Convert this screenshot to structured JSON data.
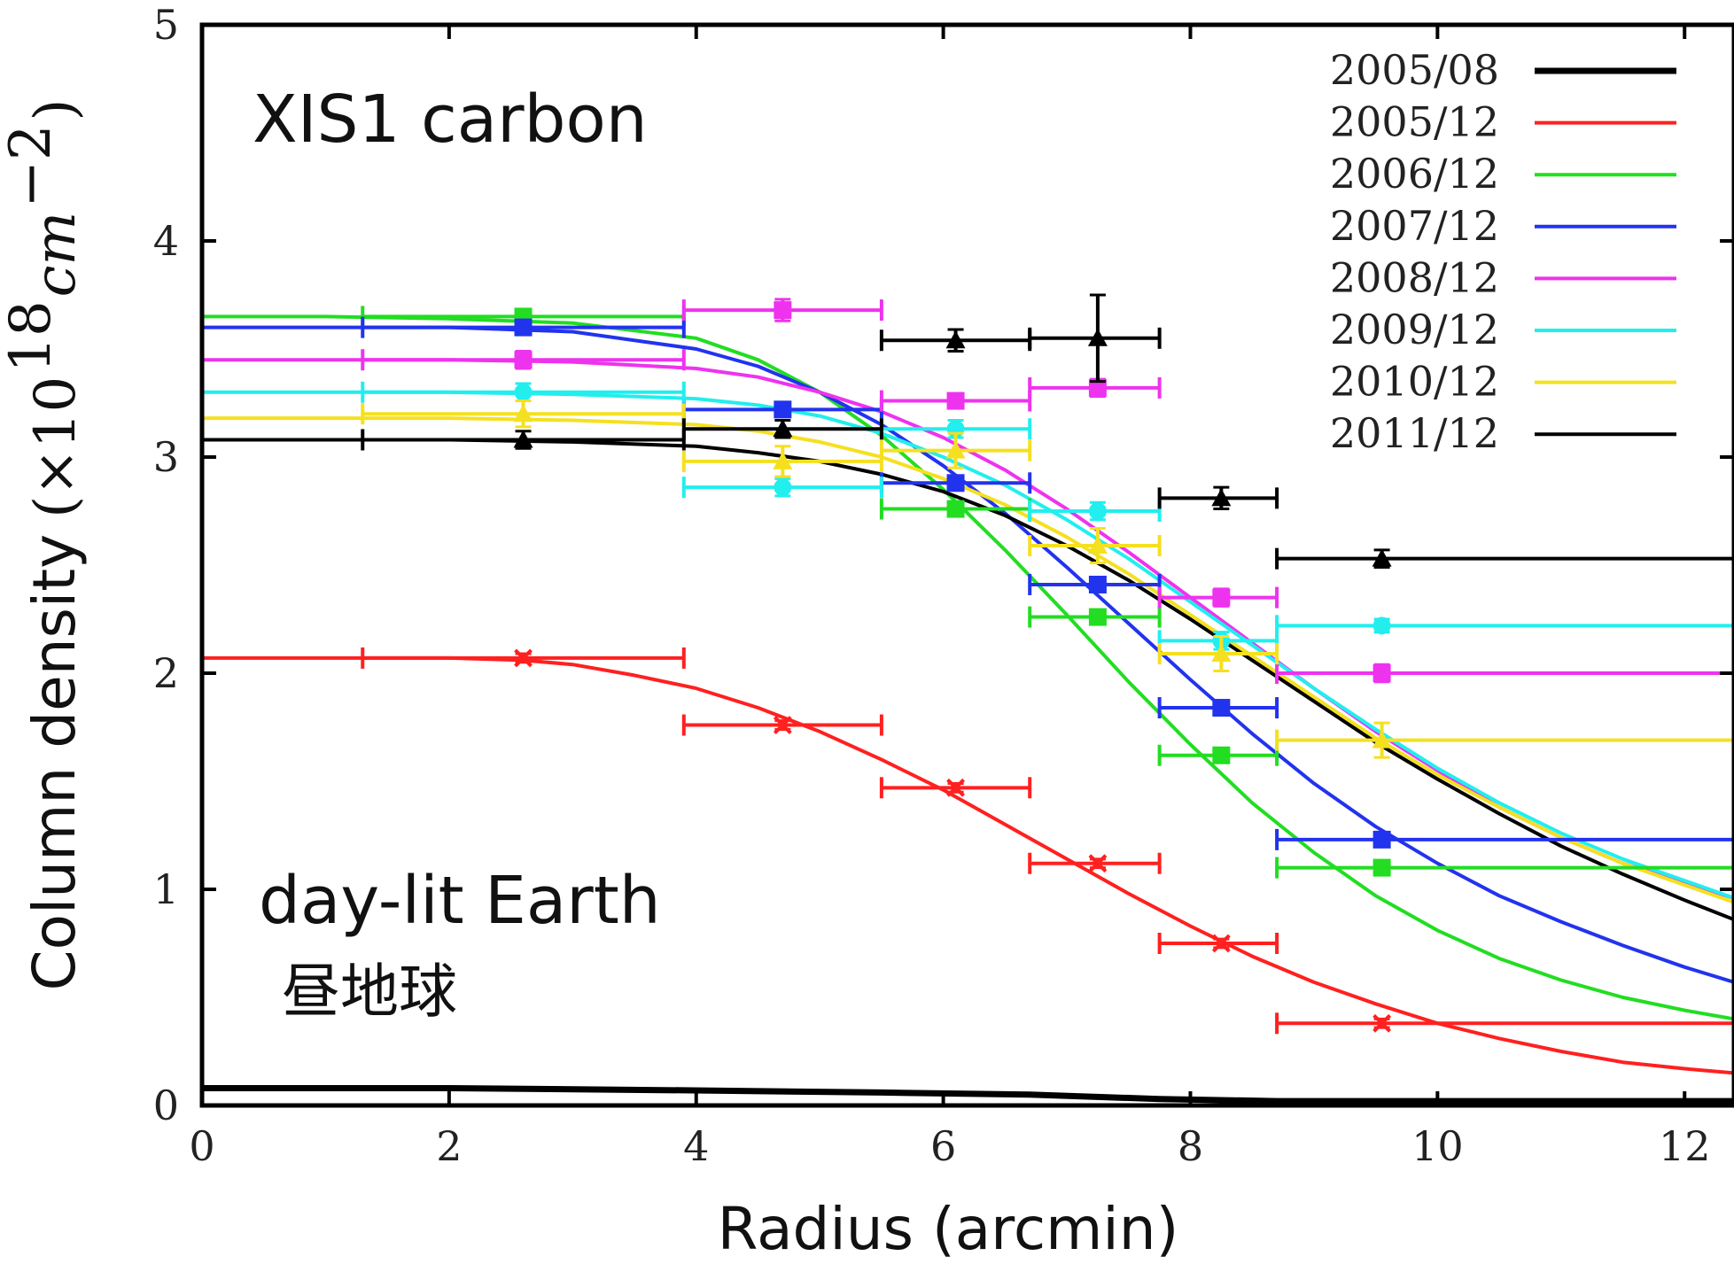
{
  "chart_data": {
    "type": "line",
    "xlabel": "Radius (arcmin)",
    "ylabel": "Column density",
    "ylabel_unit": {
      "open": "(×10",
      "exp": "18",
      "unit": "cm",
      "unit_exp": "−2",
      "close": ")"
    },
    "xlim": [
      0,
      12.4
    ],
    "ylim": [
      0,
      5
    ],
    "xticks": [
      0,
      2,
      4,
      6,
      8,
      10,
      12
    ],
    "yticks": [
      0,
      1,
      2,
      3,
      4,
      5
    ],
    "grid": false,
    "legend_position": "top-right",
    "annotations": [
      "XIS1 carbon",
      "day-lit Earth",
      "昼地球"
    ],
    "bins": [
      [
        1.3,
        3.9
      ],
      [
        3.9,
        5.5
      ],
      [
        5.5,
        6.7
      ],
      [
        6.7,
        7.75
      ],
      [
        7.75,
        8.7
      ],
      [
        8.7,
        12.4
      ]
    ],
    "bin_centers": [
      2.6,
      4.7,
      6.1,
      7.25,
      8.25,
      9.55
    ],
    "series": [
      {
        "name": "2005/08",
        "color": "#000000",
        "width": 7,
        "marker": "none",
        "x": [
          0,
          2,
          3.9,
          5.5,
          6.7,
          7.75,
          8.7,
          10,
          11,
          12.4
        ],
        "y": [
          0.08,
          0.08,
          0.07,
          0.06,
          0.05,
          0.03,
          0.02,
          0.02,
          0.02,
          0.02
        ],
        "points": []
      },
      {
        "name": "2005/12",
        "color": "#ff2020",
        "width": 4,
        "marker": "x",
        "x": [
          0,
          1,
          2,
          2.6,
          3,
          3.5,
          4,
          4.5,
          5,
          5.5,
          6,
          6.5,
          7,
          7.5,
          8,
          8.5,
          9,
          9.5,
          10,
          10.5,
          11,
          11.5,
          12,
          12.4
        ],
        "y": [
          2.07,
          2.07,
          2.07,
          2.06,
          2.04,
          1.99,
          1.93,
          1.84,
          1.73,
          1.6,
          1.46,
          1.3,
          1.14,
          0.98,
          0.83,
          0.69,
          0.57,
          0.47,
          0.38,
          0.31,
          0.25,
          0.2,
          0.17,
          0.15
        ],
        "points": [
          {
            "x": 2.6,
            "y": 2.07,
            "xerr": [
              1.3,
              3.9
            ],
            "yerr": 0.02
          },
          {
            "x": 4.7,
            "y": 1.76,
            "xerr": [
              3.9,
              5.5
            ],
            "yerr": 0.02
          },
          {
            "x": 6.1,
            "y": 1.47,
            "xerr": [
              5.5,
              6.7
            ],
            "yerr": 0.02
          },
          {
            "x": 7.25,
            "y": 1.12,
            "xerr": [
              6.7,
              7.75
            ],
            "yerr": 0.02
          },
          {
            "x": 8.25,
            "y": 0.75,
            "xerr": [
              7.75,
              8.7
            ],
            "yerr": 0.02
          },
          {
            "x": 9.55,
            "y": 0.38,
            "xerr": [
              8.7,
              12.4
            ],
            "yerr": 0.02
          }
        ]
      },
      {
        "name": "2006/12",
        "color": "#22dd22",
        "width": 4,
        "marker": "square",
        "x": [
          0,
          1,
          2,
          3,
          4,
          4.5,
          5,
          5.5,
          6,
          6.5,
          7,
          7.5,
          8,
          8.5,
          9,
          9.5,
          10,
          10.5,
          11,
          11.5,
          12,
          12.4
        ],
        "y": [
          3.65,
          3.65,
          3.64,
          3.62,
          3.55,
          3.45,
          3.3,
          3.1,
          2.85,
          2.57,
          2.27,
          1.96,
          1.67,
          1.4,
          1.17,
          0.97,
          0.81,
          0.68,
          0.58,
          0.5,
          0.44,
          0.4
        ],
        "points": [
          {
            "x": 2.6,
            "y": 3.65,
            "xerr": [
              1.3,
              3.9
            ],
            "yerr": 0.03
          },
          {
            "x": 6.1,
            "y": 2.76,
            "xerr": [
              5.5,
              6.7
            ],
            "yerr": 0.03
          },
          {
            "x": 7.25,
            "y": 2.26,
            "xerr": [
              6.7,
              7.75
            ],
            "yerr": 0.03
          },
          {
            "x": 8.25,
            "y": 1.62,
            "xerr": [
              7.75,
              8.7
            ],
            "yerr": 0.03
          },
          {
            "x": 9.55,
            "y": 1.1,
            "xerr": [
              8.7,
              12.4
            ],
            "yerr": 0.03
          }
        ]
      },
      {
        "name": "2007/12",
        "color": "#2233ee",
        "width": 4,
        "marker": "square",
        "x": [
          0,
          1,
          2,
          3,
          4,
          4.5,
          5,
          5.5,
          6,
          6.5,
          7,
          7.5,
          8,
          8.5,
          9,
          9.5,
          10,
          10.5,
          11,
          11.5,
          12,
          12.4
        ],
        "y": [
          3.6,
          3.6,
          3.6,
          3.58,
          3.5,
          3.42,
          3.3,
          3.15,
          2.96,
          2.74,
          2.49,
          2.23,
          1.97,
          1.72,
          1.49,
          1.29,
          1.12,
          0.97,
          0.85,
          0.74,
          0.64,
          0.57
        ],
        "points": [
          {
            "x": 2.6,
            "y": 3.6,
            "xerr": [
              1.3,
              3.9
            ],
            "yerr": 0.03
          },
          {
            "x": 4.7,
            "y": 3.22,
            "xerr": [
              3.9,
              5.5
            ],
            "yerr": 0.03
          },
          {
            "x": 6.1,
            "y": 2.88,
            "xerr": [
              5.5,
              6.7
            ],
            "yerr": 0.03
          },
          {
            "x": 7.25,
            "y": 2.41,
            "xerr": [
              6.7,
              7.75
            ],
            "yerr": 0.03
          },
          {
            "x": 8.25,
            "y": 1.84,
            "xerr": [
              7.75,
              8.7
            ],
            "yerr": 0.03
          },
          {
            "x": 9.55,
            "y": 1.23,
            "xerr": [
              8.7,
              12.4
            ],
            "yerr": 0.03
          }
        ]
      },
      {
        "name": "2008/12",
        "color": "#ee33ee",
        "width": 4,
        "marker": "square",
        "x": [
          0,
          1,
          2,
          3,
          4,
          4.5,
          5,
          5.5,
          6,
          6.5,
          7,
          7.5,
          8,
          8.5,
          9,
          9.5,
          10,
          10.5,
          11,
          11.5,
          12,
          12.4
        ],
        "y": [
          3.45,
          3.45,
          3.45,
          3.44,
          3.41,
          3.37,
          3.3,
          3.21,
          3.09,
          2.94,
          2.76,
          2.56,
          2.35,
          2.14,
          1.93,
          1.73,
          1.55,
          1.38,
          1.24,
          1.12,
          1.03,
          0.96
        ],
        "points": [
          {
            "x": 2.6,
            "y": 3.45,
            "xerr": [
              1.3,
              3.9
            ],
            "yerr": 0.04
          },
          {
            "x": 4.7,
            "y": 3.68,
            "xerr": [
              3.9,
              5.5
            ],
            "yerr": 0.05
          },
          {
            "x": 6.1,
            "y": 3.26,
            "xerr": [
              5.5,
              6.7
            ],
            "yerr": 0.03
          },
          {
            "x": 7.25,
            "y": 3.32,
            "xerr": [
              6.7,
              7.75
            ],
            "yerr": 0.04
          },
          {
            "x": 8.25,
            "y": 2.35,
            "xerr": [
              7.75,
              8.7
            ],
            "yerr": 0.04
          },
          {
            "x": 9.55,
            "y": 2.0,
            "xerr": [
              8.7,
              12.4
            ],
            "yerr": 0.04
          }
        ]
      },
      {
        "name": "2009/12",
        "color": "#22eeee",
        "width": 4,
        "marker": "circle",
        "x": [
          0,
          1,
          2,
          3,
          4,
          4.5,
          5,
          5.5,
          6,
          6.5,
          7,
          7.5,
          8,
          8.5,
          9,
          9.5,
          10,
          10.5,
          11,
          11.5,
          12,
          12.4
        ],
        "y": [
          3.3,
          3.3,
          3.3,
          3.29,
          3.27,
          3.24,
          3.19,
          3.11,
          3.0,
          2.87,
          2.71,
          2.53,
          2.33,
          2.13,
          1.93,
          1.74,
          1.56,
          1.4,
          1.26,
          1.14,
          1.04,
          0.96
        ],
        "points": [
          {
            "x": 2.6,
            "y": 3.3,
            "xerr": [
              1.3,
              3.9
            ],
            "yerr": 0.04
          },
          {
            "x": 4.7,
            "y": 2.86,
            "xerr": [
              3.9,
              5.5
            ],
            "yerr": 0.04
          },
          {
            "x": 6.1,
            "y": 3.13,
            "xerr": [
              5.5,
              6.7
            ],
            "yerr": 0.04
          },
          {
            "x": 7.25,
            "y": 2.75,
            "xerr": [
              6.7,
              7.75
            ],
            "yerr": 0.04
          },
          {
            "x": 8.25,
            "y": 2.15,
            "xerr": [
              7.75,
              8.7
            ],
            "yerr": 0.04
          },
          {
            "x": 9.55,
            "y": 2.22,
            "xerr": [
              8.7,
              12.4
            ],
            "yerr": 0.03
          }
        ]
      },
      {
        "name": "2010/12",
        "color": "#f5e020",
        "width": 4,
        "marker": "triangle",
        "x": [
          0,
          1,
          2,
          3,
          4,
          4.5,
          5,
          5.5,
          6,
          6.5,
          7,
          7.5,
          8,
          8.5,
          9,
          9.5,
          10,
          10.5,
          11,
          11.5,
          12,
          12.4
        ],
        "y": [
          3.18,
          3.18,
          3.18,
          3.17,
          3.15,
          3.12,
          3.07,
          3.0,
          2.9,
          2.78,
          2.63,
          2.46,
          2.27,
          2.08,
          1.89,
          1.7,
          1.53,
          1.38,
          1.24,
          1.12,
          1.02,
          0.94
        ],
        "points": [
          {
            "x": 2.6,
            "y": 3.2,
            "xerr": [
              1.3,
              3.9
            ],
            "yerr": 0.06
          },
          {
            "x": 4.7,
            "y": 2.98,
            "xerr": [
              3.9,
              5.5
            ],
            "yerr": 0.07
          },
          {
            "x": 6.1,
            "y": 3.03,
            "xerr": [
              5.5,
              6.7
            ],
            "yerr": 0.08
          },
          {
            "x": 7.25,
            "y": 2.59,
            "xerr": [
              6.7,
              7.75
            ],
            "yerr": 0.08
          },
          {
            "x": 8.25,
            "y": 2.09,
            "xerr": [
              7.75,
              8.7
            ],
            "yerr": 0.08
          },
          {
            "x": 9.55,
            "y": 1.69,
            "xerr": [
              8.7,
              12.4
            ],
            "yerr": 0.08
          }
        ]
      },
      {
        "name": "2011/12",
        "color": "#000000",
        "width": 4,
        "marker": "triangle",
        "x": [
          0,
          1,
          2,
          3,
          4,
          4.5,
          5,
          5.5,
          6,
          6.5,
          7,
          7.5,
          8,
          8.5,
          9,
          9.5,
          10,
          10.5,
          11,
          11.5,
          12,
          12.4
        ],
        "y": [
          3.08,
          3.08,
          3.08,
          3.07,
          3.05,
          3.02,
          2.98,
          2.92,
          2.84,
          2.73,
          2.59,
          2.43,
          2.25,
          2.06,
          1.87,
          1.68,
          1.51,
          1.35,
          1.2,
          1.07,
          0.95,
          0.86
        ],
        "points": [
          {
            "x": 2.6,
            "y": 3.08,
            "xerr": [
              1.3,
              3.9
            ],
            "yerr": 0.04
          },
          {
            "x": 4.7,
            "y": 3.13,
            "xerr": [
              3.9,
              5.5
            ],
            "yerr": 0.04
          },
          {
            "x": 6.1,
            "y": 3.54,
            "xerr": [
              5.5,
              6.7
            ],
            "yerr": 0.05
          },
          {
            "x": 7.25,
            "y": 3.55,
            "xerr": [
              6.7,
              7.75
            ],
            "yerr": 0.2
          },
          {
            "x": 8.25,
            "y": 2.81,
            "xerr": [
              7.75,
              8.7
            ],
            "yerr": 0.05
          },
          {
            "x": 9.55,
            "y": 2.53,
            "xerr": [
              8.7,
              12.4
            ],
            "yerr": 0.04
          }
        ]
      }
    ]
  }
}
